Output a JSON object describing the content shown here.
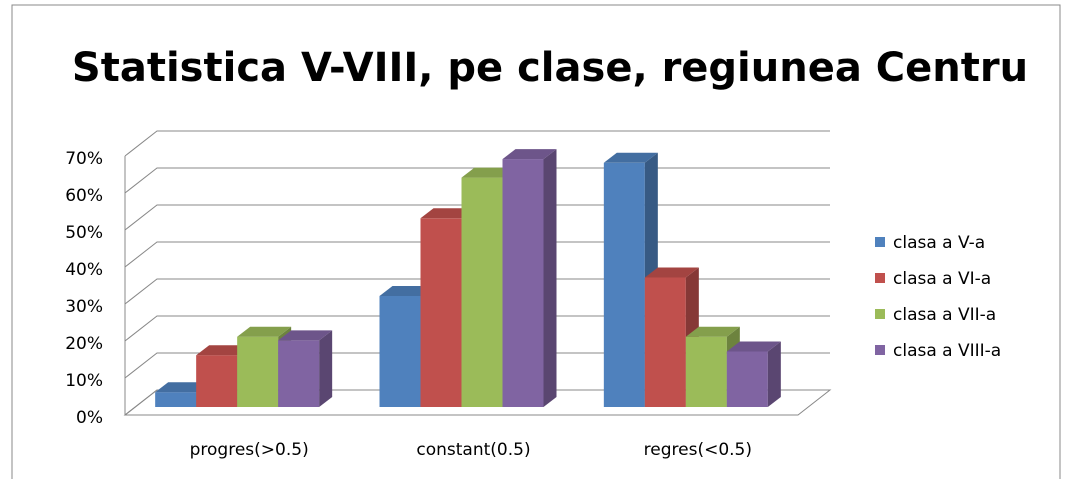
{
  "chart_data": {
    "type": "bar3d",
    "title": "Statistica V-VIII, pe clase, regiunea Centru",
    "categories": [
      "progres(>0.5)",
      "constant(0.5)",
      "regres(<0.5)"
    ],
    "series": [
      {
        "name": "clasa a V-a",
        "color": "#4f81bd",
        "values": [
          4,
          30,
          66
        ]
      },
      {
        "name": "clasa a VI-a",
        "color": "#c0504d",
        "values": [
          14,
          51,
          35
        ]
      },
      {
        "name": "clasa a VII-a",
        "color": "#9bbb59",
        "values": [
          19,
          62,
          19
        ]
      },
      {
        "name": "clasa a VIII-a",
        "color": "#8064a2",
        "values": [
          18,
          67,
          15
        ]
      }
    ],
    "ylim": [
      0,
      70
    ],
    "yticks": [
      {
        "value": 0,
        "label": "0%"
      },
      {
        "value": 10,
        "label": "10%"
      },
      {
        "value": 20,
        "label": "20%"
      },
      {
        "value": 30,
        "label": "30%"
      },
      {
        "value": 40,
        "label": "40%"
      },
      {
        "value": 50,
        "label": "50%"
      },
      {
        "value": 60,
        "label": "60%"
      },
      {
        "value": 70,
        "label": "70%"
      }
    ],
    "grid": true,
    "legend": "right"
  }
}
